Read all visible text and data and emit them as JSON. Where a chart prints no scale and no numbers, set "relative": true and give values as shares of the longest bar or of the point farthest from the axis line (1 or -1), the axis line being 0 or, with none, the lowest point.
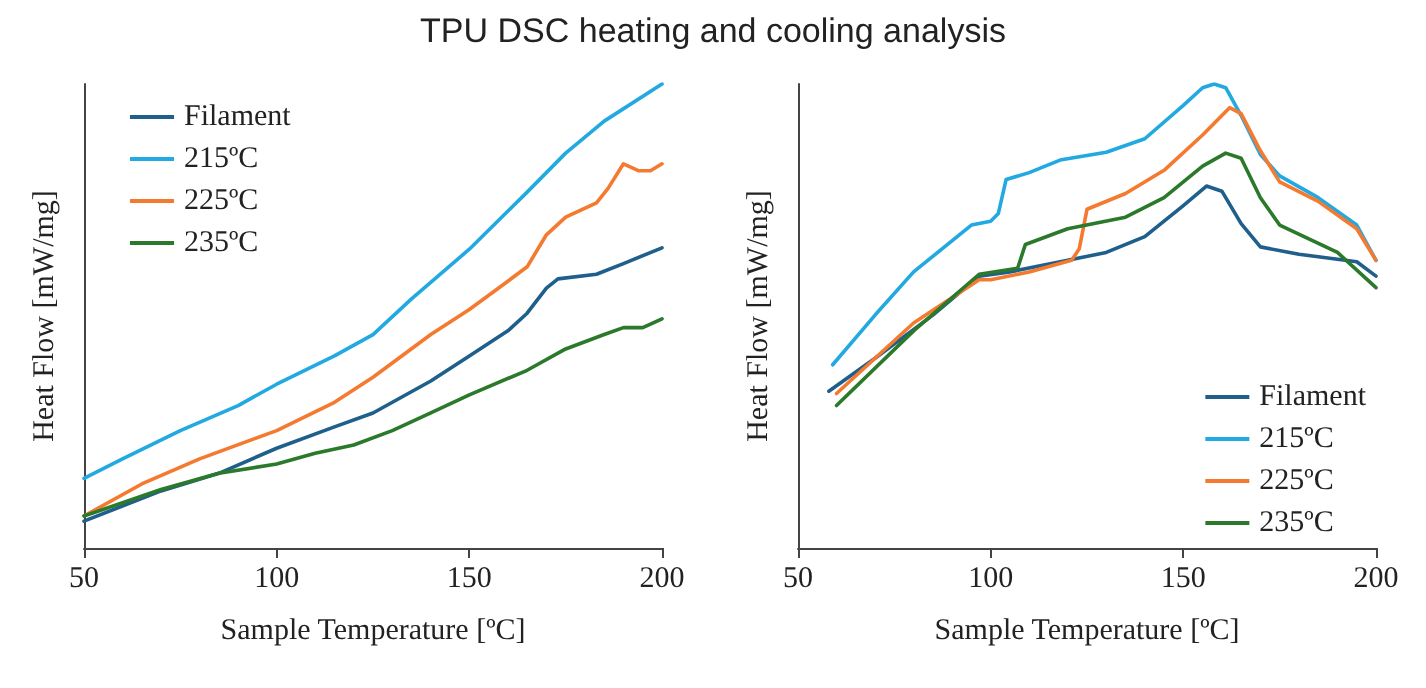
{
  "chart_data": [
    {
      "type": "line",
      "title": "TPU DSC heating and cooling analysis",
      "xlabel": "Sample Temperature [ºC]",
      "ylabel": "Heat Flow [mW/mg]",
      "relative": true,
      "xlim": [
        50,
        200
      ],
      "xticks": [
        50,
        100,
        150,
        200
      ],
      "grid": false,
      "legend": "top left",
      "marker": "none",
      "line_style": "solid",
      "series": [
        {
          "name": "Filament",
          "color": "#1f5f8b",
          "x": [
            50,
            70,
            85,
            100,
            115,
            125,
            140,
            150,
            160,
            165,
            170,
            173,
            183,
            190,
            200
          ],
          "values": [
            0.058,
            0.123,
            0.161,
            0.215,
            0.261,
            0.291,
            0.36,
            0.414,
            0.468,
            0.506,
            0.56,
            0.58,
            0.59,
            0.613,
            0.647
          ]
        },
        {
          "name": "215ºC",
          "color": "#22a9e1",
          "x": [
            50,
            60,
            75,
            90,
            100,
            115,
            125,
            135,
            150,
            165,
            175,
            185,
            200
          ],
          "values": [
            0.15,
            0.192,
            0.253,
            0.307,
            0.353,
            0.414,
            0.46,
            0.537,
            0.644,
            0.767,
            0.851,
            0.92,
            1
          ]
        },
        {
          "name": "225ºC",
          "color": "#f47a30",
          "x": [
            50,
            65,
            80,
            100,
            115,
            125,
            140,
            150,
            160,
            165,
            170,
            175,
            183,
            186,
            190,
            194,
            197,
            200
          ],
          "values": [
            0.069,
            0.138,
            0.192,
            0.253,
            0.314,
            0.368,
            0.46,
            0.514,
            0.575,
            0.606,
            0.675,
            0.713,
            0.744,
            0.775,
            0.828,
            0.813,
            0.813,
            0.828
          ]
        },
        {
          "name": "235ºC",
          "color": "#2b7a2b",
          "x": [
            50,
            70,
            85,
            100,
            110,
            120,
            130,
            140,
            150,
            165,
            175,
            185,
            190,
            195,
            200
          ],
          "values": [
            0.069,
            0.126,
            0.161,
            0.181,
            0.204,
            0.222,
            0.253,
            0.291,
            0.33,
            0.383,
            0.429,
            0.46,
            0.475,
            0.475,
            0.494
          ]
        }
      ]
    },
    {
      "type": "line",
      "xlabel": "Sample Temperature [ºC]",
      "ylabel": "Heat Flow [mW/mg]",
      "relative": true,
      "xlim": [
        50,
        200
      ],
      "xticks": [
        50,
        100,
        150,
        200
      ],
      "grid": false,
      "legend": "bottom right",
      "marker": "none",
      "line_style": "solid",
      "series": [
        {
          "name": "Filament",
          "color": "#1f5f8b",
          "x": [
            58,
            70,
            85,
            97,
            105,
            120,
            130,
            140,
            150,
            156,
            160,
            165,
            170,
            180,
            195,
            200
          ],
          "values": [
            0.338,
            0.409,
            0.502,
            0.586,
            0.595,
            0.62,
            0.637,
            0.671,
            0.738,
            0.78,
            0.769,
            0.699,
            0.649,
            0.633,
            0.617,
            0.586
          ]
        },
        {
          "name": "215ºC",
          "color": "#22a9e1",
          "x": [
            59,
            70,
            80,
            95,
            100,
            102,
            104,
            110,
            118,
            130,
            140,
            150,
            155,
            158,
            161,
            165,
            170,
            175,
            185,
            195,
            200
          ],
          "values": [
            0.395,
            0.502,
            0.595,
            0.696,
            0.704,
            0.721,
            0.794,
            0.809,
            0.836,
            0.853,
            0.882,
            0.954,
            0.992,
            1,
            0.992,
            0.932,
            0.848,
            0.802,
            0.755,
            0.696,
            0.62
          ]
        },
        {
          "name": "225ºC",
          "color": "#f47a30",
          "x": [
            60,
            80,
            97,
            100,
            110,
            121,
            123,
            125,
            135,
            145,
            155,
            162,
            165,
            170,
            175,
            185,
            195,
            200
          ],
          "values": [
            0.333,
            0.485,
            0.578,
            0.578,
            0.595,
            0.62,
            0.645,
            0.73,
            0.764,
            0.814,
            0.89,
            0.949,
            0.936,
            0.856,
            0.789,
            0.747,
            0.688,
            0.62
          ]
        },
        {
          "name": "235ºC",
          "color": "#2b7a2b",
          "x": [
            60,
            80,
            97,
            107,
            109,
            120,
            135,
            145,
            155,
            161,
            165,
            170,
            175,
            190,
            200
          ],
          "values": [
            0.307,
            0.468,
            0.59,
            0.603,
            0.654,
            0.688,
            0.713,
            0.755,
            0.823,
            0.851,
            0.84,
            0.755,
            0.696,
            0.637,
            0.561
          ]
        }
      ]
    }
  ]
}
